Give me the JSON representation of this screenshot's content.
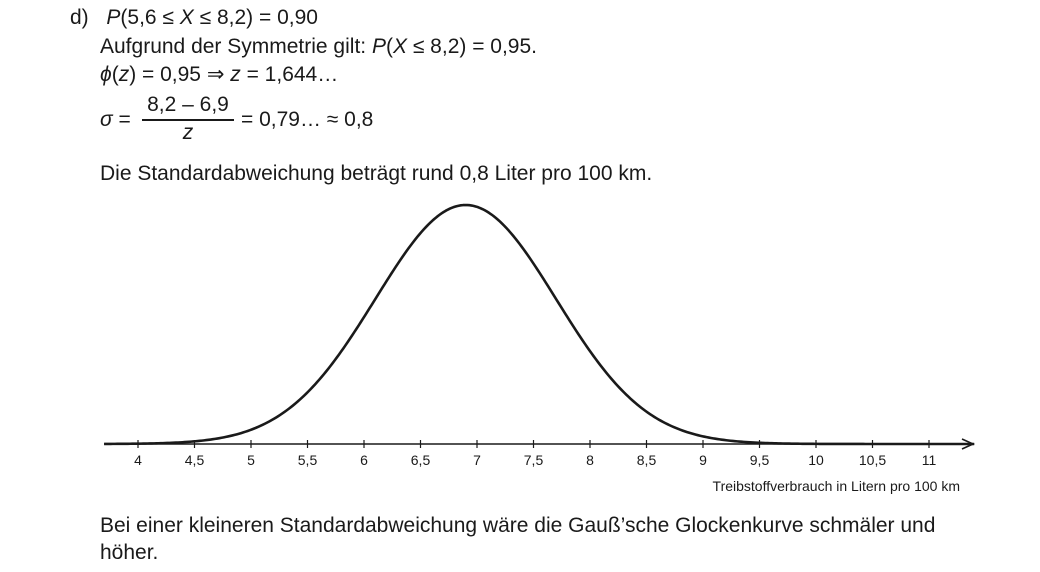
{
  "part_label": "d)",
  "line1": {
    "P": "P",
    "open": "(5,6 ≤ ",
    "X": "X",
    "close": " ≤ 8,2) = 0,90"
  },
  "line2": {
    "text": "Aufgrund der Symmetrie gilt: ",
    "P": "P",
    "open": "(",
    "X": "X",
    "close": " ≤ 8,2) = 0,95."
  },
  "line3": {
    "phi": "ϕ",
    "open": "(",
    "z": "z",
    "middle": ") = 0,95  ⇒  ",
    "z2": "z",
    "rest": " = 1,644…"
  },
  "line4": {
    "sigma": "σ",
    "eq": " =",
    "numerator": "8,2 – 6,9",
    "denominator": "z",
    "rest": "= 0,79… ≈ 0,8"
  },
  "conclusion": "Die Standardabweichung beträgt rund 0,8 Liter pro 100 km.",
  "chart_data": {
    "type": "line",
    "description_curve": "normal distribution density",
    "mu": 6.9,
    "sigma": 0.8,
    "xlim": [
      3.7,
      11.4
    ],
    "xticks": [
      4,
      4.5,
      5,
      5.5,
      6,
      6.5,
      7,
      7.5,
      8,
      8.5,
      9,
      9.5,
      10,
      10.5,
      11
    ],
    "xtick_labels": [
      "4",
      "4,5",
      "5",
      "5,5",
      "6",
      "6,5",
      "7",
      "7,5",
      "8",
      "8,5",
      "9",
      "9,5",
      "10",
      "10,5",
      "11"
    ],
    "xlabel": "Treibstoffverbrauch in Litern pro 100 km",
    "ylabel": "",
    "grid": false,
    "curve_color": "#1a1a1a"
  },
  "final_text_line1": "Bei einer kleineren Standardabweichung wäre die Gauß’sche Glockenkurve schmäler und",
  "final_text_line2": "höher."
}
